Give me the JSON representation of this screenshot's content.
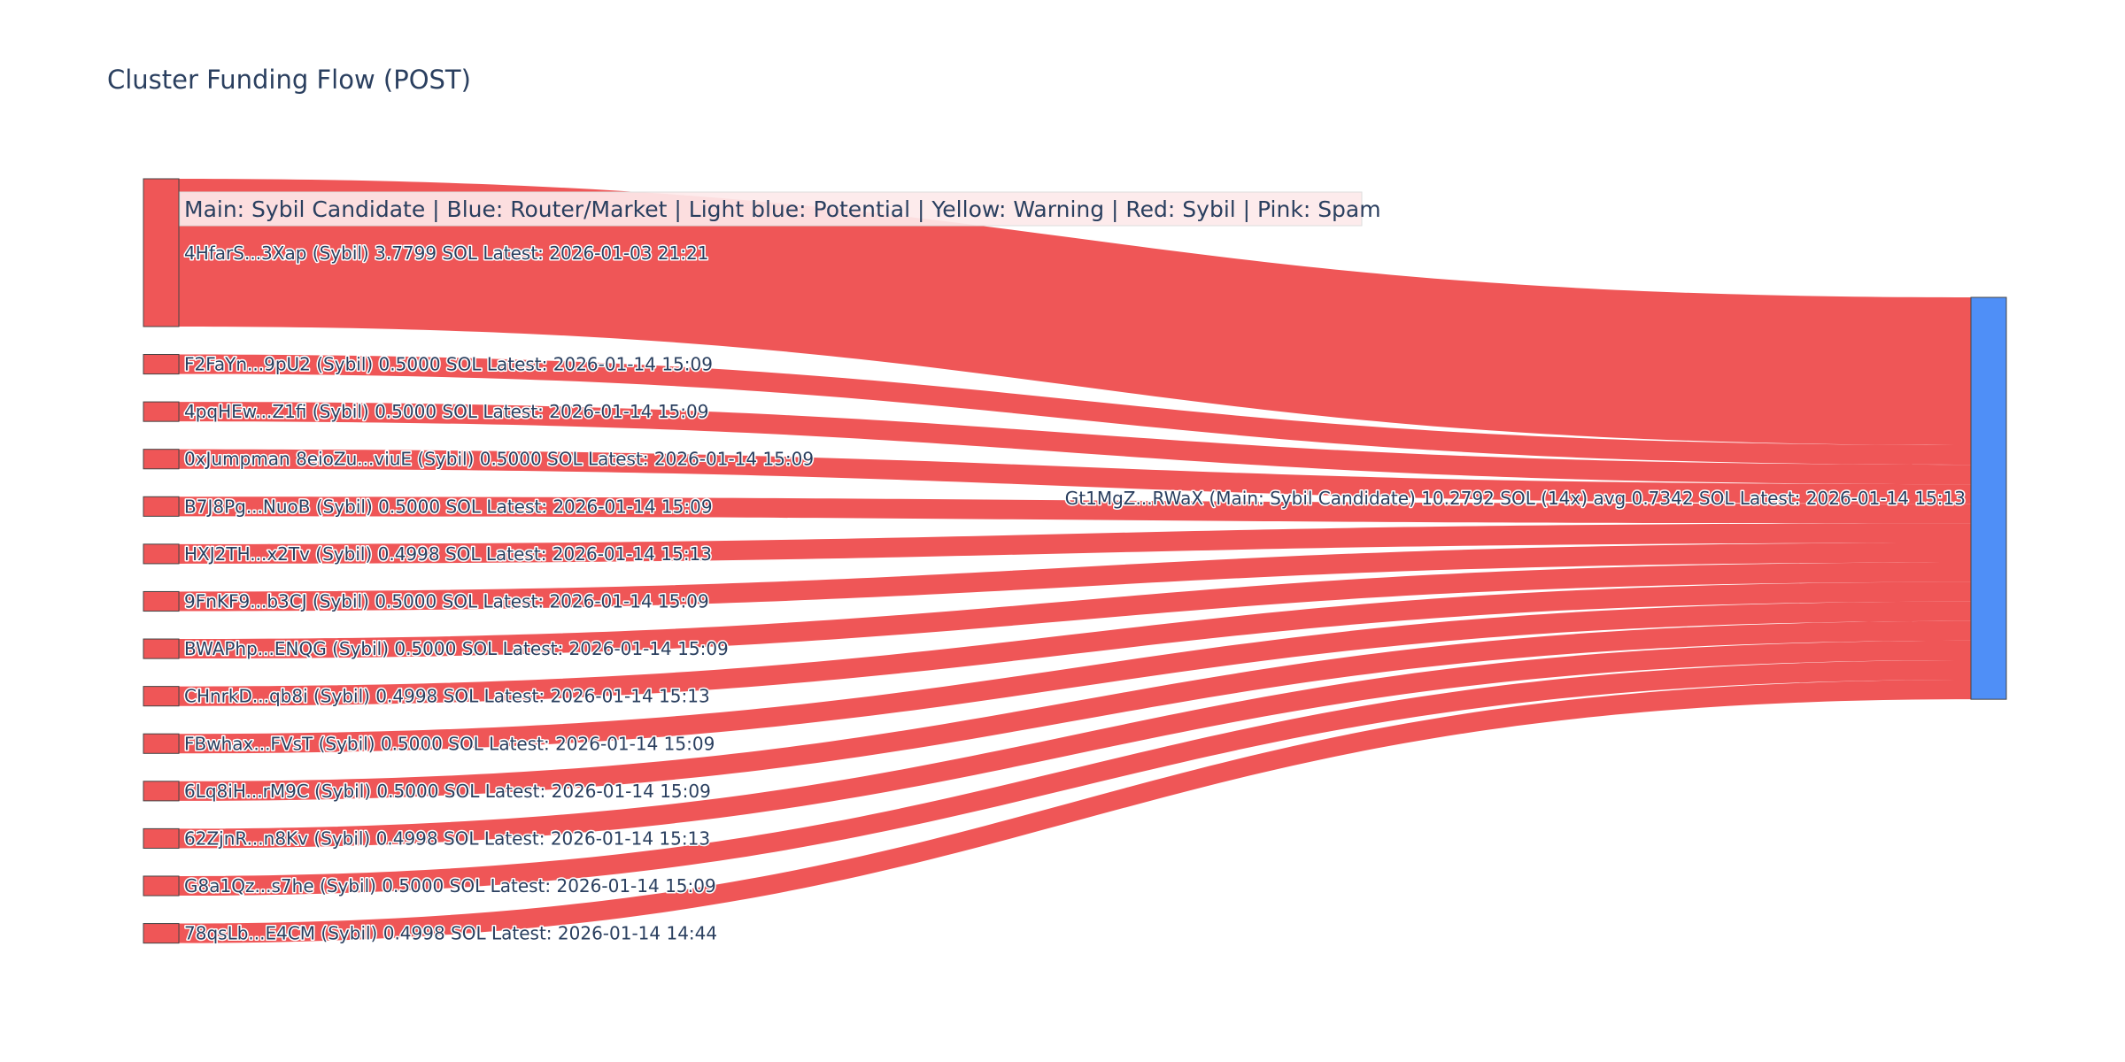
{
  "chart_data": {
    "type": "sankey",
    "title": "Cluster Funding Flow (POST)",
    "legend_text": "Main: Sybil Candidate  |  Blue: Router/Market | Light blue: Potential | Yellow: Warning | Red: Sybil | Pink: Spam",
    "colors": {
      "sybil": "#ef5657",
      "target": "#4f8ff7",
      "node_border": "#444444",
      "legend_bg": "#fde9ea",
      "legend_border": "#dddddd"
    },
    "target": {
      "label": "Gt1MgZ...RWaX (Main: Sybil Candidate) 10.2792 SOL (14x) avg 0.7342 SOL Latest: 2026-01-14 15:13",
      "value": 10.2792,
      "category": "Main: Sybil Candidate"
    },
    "sources": [
      {
        "label": "4HfarS...3Xap (Sybil) 3.7799 SOL Latest: 2026-01-03 21:21",
        "value": 3.7799
      },
      {
        "label": "F2FaYn...9pU2 (Sybil) 0.5000 SOL Latest: 2026-01-14 15:09",
        "value": 0.5
      },
      {
        "label": "4pqHEw...Z1fi (Sybil) 0.5000 SOL Latest: 2026-01-14 15:09",
        "value": 0.5
      },
      {
        "label": "0xJumpman 8eioZu...viuE (Sybil) 0.5000 SOL Latest: 2026-01-14 15:09",
        "value": 0.5
      },
      {
        "label": "B7J8Pg...NuoB (Sybil) 0.5000 SOL Latest: 2026-01-14 15:09",
        "value": 0.5
      },
      {
        "label": "HXJ2TH...x2Tv (Sybil) 0.4998 SOL Latest: 2026-01-14 15:13",
        "value": 0.4998
      },
      {
        "label": "9FnKF9...b3CJ (Sybil) 0.5000 SOL Latest: 2026-01-14 15:09",
        "value": 0.5
      },
      {
        "label": "BWAPhp...ENQG (Sybil) 0.5000 SOL Latest: 2026-01-14 15:09",
        "value": 0.5
      },
      {
        "label": "CHnrkD...qb8i (Sybil) 0.4998 SOL Latest: 2026-01-14 15:13",
        "value": 0.4998
      },
      {
        "label": "FBwhax...FVsT (Sybil) 0.5000 SOL Latest: 2026-01-14 15:09",
        "value": 0.5
      },
      {
        "label": "6Lq8iH...rM9C (Sybil) 0.5000 SOL Latest: 2026-01-14 15:09",
        "value": 0.5
      },
      {
        "label": "62ZjnR...n8Kv (Sybil) 0.4998 SOL Latest: 2026-01-14 15:13",
        "value": 0.4998
      },
      {
        "label": "G8a1Qz...s7he (Sybil) 0.5000 SOL Latest: 2026-01-14 15:09",
        "value": 0.5
      },
      {
        "label": "78qsLb...E4CM (Sybil) 0.4998 SOL Latest: 2026-01-14 14:44",
        "value": 0.4998
      }
    ]
  }
}
